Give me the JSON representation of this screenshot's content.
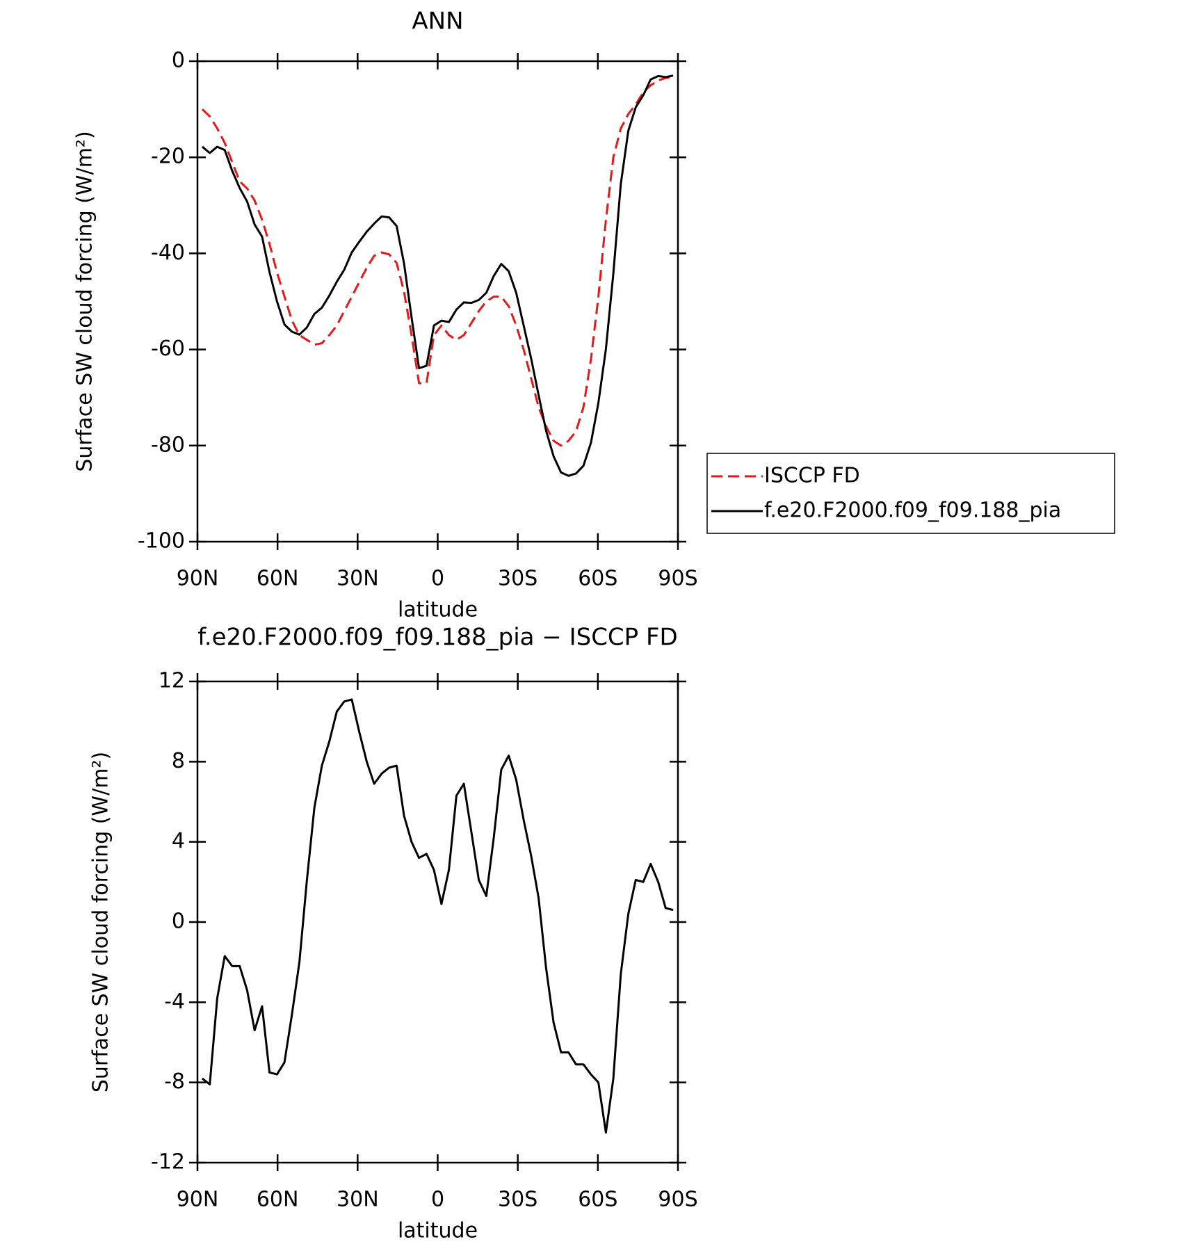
{
  "chart_data": [
    {
      "type": "line",
      "title": "ANN",
      "x_label": "latitude",
      "y_label": "Surface SW cloud forcing (W/m²)",
      "xlim": [
        90,
        -90
      ],
      "ylim": [
        -100,
        0
      ],
      "xticks": [
        {
          "value": 90,
          "label": "90N"
        },
        {
          "value": 60,
          "label": "60N"
        },
        {
          "value": 30,
          "label": "30N"
        },
        0,
        {
          "value": -30,
          "label": "30S"
        },
        {
          "value": -60,
          "label": "60S"
        },
        {
          "value": -90,
          "label": "90S"
        }
      ],
      "yticks": [
        0,
        -20,
        -40,
        -60,
        -80,
        -100
      ],
      "legend": "right",
      "x": [
        88.2,
        85.4,
        82.6,
        79.8,
        77.0,
        74.2,
        71.4,
        68.6,
        65.8,
        63.0,
        60.2,
        57.4,
        54.6,
        51.8,
        49.0,
        46.2,
        43.4,
        40.6,
        37.8,
        35.0,
        32.2,
        29.4,
        26.6,
        23.8,
        21.0,
        18.2,
        15.4,
        12.6,
        9.8,
        7.0,
        4.2,
        1.4,
        -1.4,
        -4.2,
        -7.0,
        -9.8,
        -12.6,
        -15.4,
        -18.2,
        -21.0,
        -23.8,
        -26.6,
        -29.4,
        -32.2,
        -35.0,
        -37.8,
        -40.6,
        -43.4,
        -46.2,
        -49.0,
        -51.8,
        -54.6,
        -57.4,
        -60.2,
        -63.0,
        -65.8,
        -68.6,
        -71.4,
        -74.2,
        -77.0,
        -79.8,
        -82.6,
        -85.4,
        -88.2
      ],
      "series": [
        {
          "name": "ISCCP FD",
          "color": "#e31a1c",
          "dash": "dashed",
          "values": [
            -10,
            -11.5,
            -14,
            -17,
            -21,
            -25,
            -26.5,
            -29,
            -33,
            -38,
            -44,
            -49,
            -54,
            -57,
            -58,
            -59,
            -58.7,
            -57,
            -55,
            -52,
            -49,
            -46,
            -43,
            -40.5,
            -39.8,
            -40.2,
            -42,
            -48,
            -57,
            -67,
            -67,
            -57,
            -55,
            -57,
            -58,
            -57,
            -54.5,
            -52,
            -50,
            -49,
            -49,
            -51,
            -55,
            -60,
            -66,
            -72,
            -76,
            -79,
            -80,
            -79,
            -77,
            -72,
            -62,
            -49,
            -33,
            -20,
            -14,
            -11,
            -9,
            -6.5,
            -5,
            -4,
            -3.5,
            -3.2
          ]
        },
        {
          "name": "f.e20.F2000.f09_f09.188_pia",
          "color": "#000000",
          "dash": "solid",
          "values": [
            -17.8,
            -19.1,
            -17.8,
            -18.5,
            -22.8,
            -26.4,
            -29.2,
            -34,
            -36.5,
            -43.9,
            -50,
            -54.8,
            -56.3,
            -56.9,
            -55.4,
            -52.6,
            -51.3,
            -48.8,
            -45.9,
            -43.4,
            -39.8,
            -37.6,
            -35.5,
            -33.8,
            -32.3,
            -32.5,
            -34.3,
            -42.1,
            -53.3,
            -63.9,
            -63.4,
            -55,
            -54,
            -54.3,
            -51.7,
            -50.2,
            -50.3,
            -49.7,
            -48.2,
            -44.7,
            -42.2,
            -43.7,
            -48.2,
            -55,
            -61.9,
            -69.5,
            -76.9,
            -82.2,
            -85.6,
            -86.3,
            -85.8,
            -84.2,
            -79.4,
            -71.1,
            -59.9,
            -44.2,
            -25.6,
            -14.5,
            -9.6,
            -7.1,
            -3.8,
            -3.1,
            -3.3,
            -3
          ]
        }
      ]
    },
    {
      "type": "line",
      "title": "f.e20.F2000.f09_f09.188_pia − ISCCP FD",
      "x_label": "latitude",
      "y_label": "Surface SW cloud forcing (W/m²)",
      "xlim": [
        90,
        -90
      ],
      "ylim": [
        -12,
        12
      ],
      "xticks": [
        {
          "value": 90,
          "label": "90N"
        },
        {
          "value": 60,
          "label": "60N"
        },
        {
          "value": 30,
          "label": "30N"
        },
        0,
        {
          "value": -30,
          "label": "30S"
        },
        {
          "value": -60,
          "label": "60S"
        },
        {
          "value": -90,
          "label": "90S"
        }
      ],
      "yticks": [
        -12,
        -8,
        -4,
        0,
        4,
        8,
        12
      ],
      "color": "#000000",
      "x": [
        88.2,
        85.4,
        82.6,
        79.8,
        77.0,
        74.2,
        71.4,
        68.6,
        65.8,
        63.0,
        60.2,
        57.4,
        54.6,
        51.8,
        49.0,
        46.2,
        43.4,
        40.6,
        37.8,
        35.0,
        32.2,
        29.4,
        26.6,
        23.8,
        21.0,
        18.2,
        15.4,
        12.6,
        9.8,
        7.0,
        4.2,
        1.4,
        -1.4,
        -4.2,
        -7.0,
        -9.8,
        -12.6,
        -15.4,
        -18.2,
        -21.0,
        -23.8,
        -26.6,
        -29.4,
        -32.2,
        -35.0,
        -37.8,
        -40.6,
        -43.4,
        -46.2,
        -49.0,
        -51.8,
        -54.6,
        -57.4,
        -60.2,
        -63.0,
        -65.8,
        -68.6,
        -71.4,
        -74.2,
        -77.0,
        -79.8,
        -82.6,
        -85.4,
        -88.2
      ],
      "values": [
        -7.8,
        -8.1,
        -3.8,
        -1.7,
        -2.2,
        -2.2,
        -3.4,
        -5.4,
        -4.2,
        -7.5,
        -7.6,
        -7,
        -4.6,
        -2,
        2.1,
        5.7,
        7.8,
        9,
        10.5,
        11,
        11.1,
        9.5,
        8,
        6.9,
        7.4,
        7.7,
        7.8,
        5.3,
        4,
        3.2,
        3.4,
        2.6,
        0.9,
        2.6,
        6.3,
        6.9,
        4.5,
        2.1,
        1.3,
        4.2,
        7.6,
        8.3,
        7.1,
        5.1,
        3.3,
        1.2,
        -2.3,
        -5,
        -6.5,
        -6.5,
        -7.1,
        -7.1,
        -7.6,
        -8,
        -10.5,
        -7.8,
        -2.6,
        0.4,
        2.1,
        2,
        2.9,
        2,
        0.7,
        0.6
      ]
    }
  ]
}
